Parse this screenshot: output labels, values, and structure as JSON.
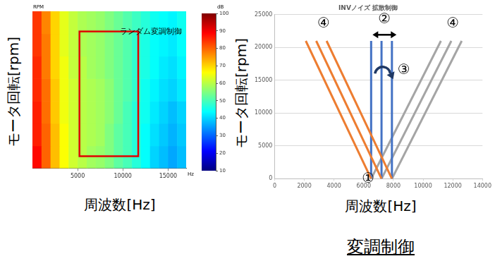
{
  "caption": "変調制御",
  "chart_data": [
    {
      "type": "heatmap",
      "title": "ランダム変調制御",
      "x_label": "周波数[Hz]",
      "y_label": "モータ回転[rpm]",
      "x_unit": "Hz",
      "y_unit": "RPM",
      "xlim": [
        0,
        17000
      ],
      "xticks": [
        5000,
        10000,
        15000
      ],
      "ylim": [
        0,
        21000
      ],
      "tick_labels": "x",
      "grid": false,
      "x_bins": [
        0,
        1000,
        2000,
        3000,
        4000,
        5000,
        6000,
        7000,
        8000,
        9000,
        10000,
        11000,
        12000,
        13000,
        14000,
        15000,
        16000,
        17000
      ],
      "y_bins": [
        0,
        3000,
        6000,
        9000,
        12000,
        15000,
        18000,
        21000
      ],
      "cells": [
        [
          88,
          80,
          72,
          66,
          62,
          60,
          58,
          57,
          55,
          52,
          50,
          47,
          44,
          40,
          38,
          36,
          38
        ],
        [
          86,
          80,
          72,
          66,
          62,
          60,
          59,
          58,
          55,
          52,
          50,
          47,
          44,
          41,
          39,
          37,
          39
        ],
        [
          86,
          79,
          71,
          65,
          62,
          60,
          59,
          58,
          56,
          53,
          50,
          47,
          45,
          42,
          40,
          38,
          40
        ],
        [
          85,
          79,
          71,
          65,
          62,
          60,
          59,
          58,
          56,
          53,
          51,
          48,
          45,
          43,
          41,
          40,
          42
        ],
        [
          85,
          78,
          70,
          65,
          61,
          60,
          58,
          57,
          55,
          53,
          51,
          48,
          46,
          44,
          42,
          41,
          43
        ],
        [
          84,
          78,
          70,
          64,
          61,
          59,
          58,
          57,
          55,
          53,
          51,
          48,
          46,
          44,
          43,
          42,
          44
        ],
        [
          84,
          77,
          70,
          64,
          61,
          59,
          58,
          57,
          55,
          53,
          51,
          49,
          47,
          45,
          44,
          43,
          45
        ]
      ],
      "colorbar": {
        "label": "dB",
        "range": [
          10,
          100
        ],
        "ticks": [
          10,
          20,
          30,
          40,
          50,
          60,
          70,
          80,
          90,
          100
        ]
      },
      "highlight": {
        "xlim": [
          5200,
          11700
        ],
        "ylim": [
          1600,
          18300
        ],
        "color": "#e00000"
      }
    },
    {
      "type": "line",
      "title": "INVノイズ 拡散制御",
      "x_label": "周波数[Hz]",
      "y_label": "モータ回転[rpm]",
      "xlim": [
        0,
        14000
      ],
      "xticks": [
        0,
        2000,
        4000,
        6000,
        8000,
        10000,
        12000,
        14000
      ],
      "ylim": [
        0,
        25000
      ],
      "yticks": [
        0,
        5000,
        10000,
        15000,
        20000,
        25000
      ],
      "grid": true,
      "series": [
        {
          "color": "#ed7d31",
          "x": [
            6500,
            2100
          ],
          "values": [
            0,
            21000
          ]
        },
        {
          "color": "#ed7d31",
          "x": [
            7200,
            2800
          ],
          "values": [
            0,
            21000
          ]
        },
        {
          "color": "#ed7d31",
          "x": [
            7900,
            3500
          ],
          "values": [
            0,
            21000
          ]
        },
        {
          "color": "#4472c4",
          "x": [
            6500,
            6500
          ],
          "values": [
            0,
            21000
          ]
        },
        {
          "color": "#4472c4",
          "x": [
            7200,
            7200
          ],
          "values": [
            0,
            21000
          ]
        },
        {
          "color": "#4472c4",
          "x": [
            7900,
            7900
          ],
          "values": [
            0,
            21000
          ]
        },
        {
          "color": "#a5a5a5",
          "x": [
            6500,
            11200
          ],
          "values": [
            0,
            21000
          ]
        },
        {
          "color": "#a5a5a5",
          "x": [
            7200,
            11900
          ],
          "values": [
            0,
            21000
          ]
        },
        {
          "color": "#a5a5a5",
          "x": [
            7900,
            12600
          ],
          "values": [
            0,
            21000
          ]
        }
      ],
      "annotations": [
        {
          "text": "①",
          "x": 6300,
          "y": 0
        },
        {
          "text": "②",
          "x": 7400,
          "y": 24300
        },
        {
          "text": "③",
          "x": 8700,
          "y": 16500
        },
        {
          "text": "④",
          "x": 3300,
          "y": 23600
        },
        {
          "text": "④",
          "x": 12000,
          "y": 23600
        }
      ]
    }
  ]
}
